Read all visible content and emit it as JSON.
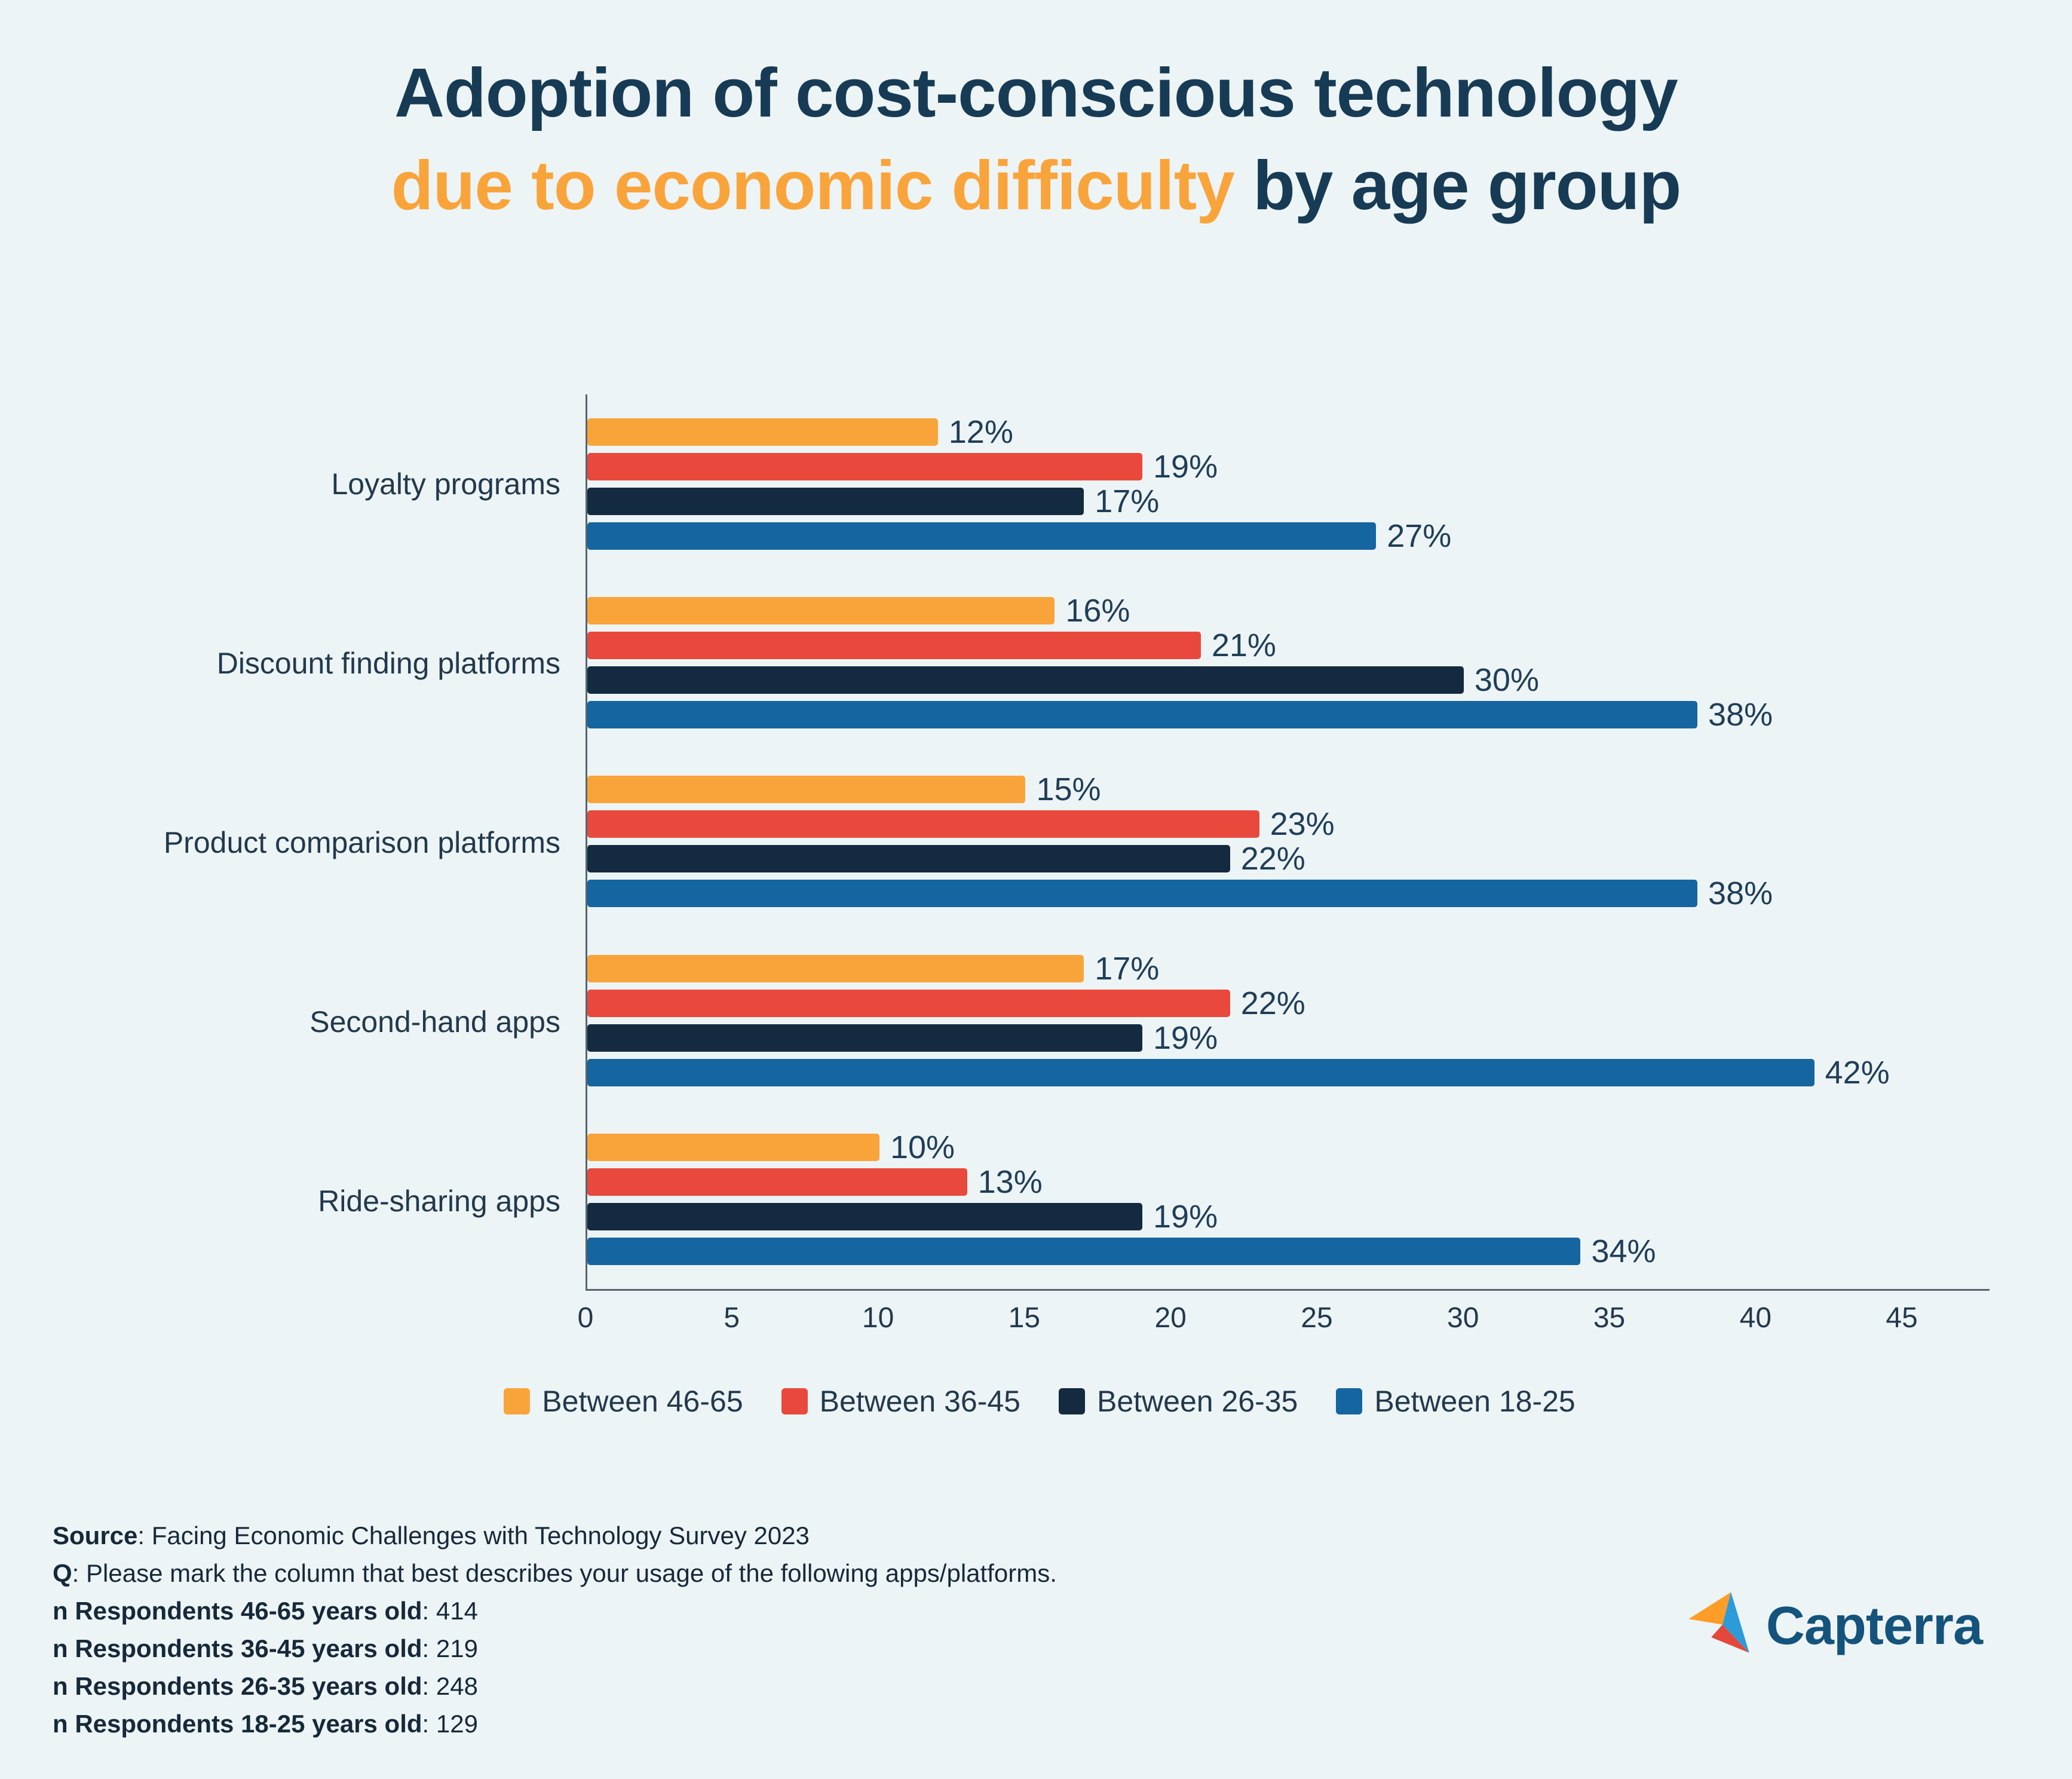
{
  "title": {
    "line1": "Adoption of cost-conscious technology",
    "line2_accent": "due to economic difficulty",
    "line2_rest": " by age group"
  },
  "colors": {
    "background": "#EDF4F6",
    "title_navy": "#173B54",
    "accent_orange": "#F9A43B",
    "axis": "#56656F",
    "text": "#1F3545"
  },
  "chart_data": {
    "type": "bar",
    "orientation": "horizontal",
    "title": "Adoption of cost-conscious technology due to economic difficulty by age group",
    "categories": [
      "Loyalty programs",
      "Discount finding platforms",
      "Product comparison platforms",
      "Second-hand apps",
      "Ride-sharing apps"
    ],
    "series": [
      {
        "name": "Between 46-65",
        "color": "#F9A43B",
        "values": [
          12,
          16,
          15,
          17,
          10
        ]
      },
      {
        "name": "Between 36-45",
        "color": "#E8493C",
        "values": [
          19,
          21,
          23,
          22,
          13
        ]
      },
      {
        "name": "Between 26-35",
        "color": "#132A40",
        "values": [
          17,
          30,
          22,
          19,
          19
        ]
      },
      {
        "name": "Between 18-25",
        "color": "#1565A0",
        "values": [
          27,
          38,
          38,
          42,
          34
        ]
      }
    ],
    "value_suffix": "%",
    "xlabel": "",
    "ylabel": "",
    "xlim": [
      0,
      48
    ],
    "xticks": [
      0,
      5,
      10,
      15,
      20,
      25,
      30,
      35,
      40,
      45
    ],
    "legend_position": "bottom",
    "grid": false
  },
  "footer": {
    "source_label": "Source",
    "source_rest": ": Facing Economic Challenges with Technology Survey 2023",
    "q_label": "Q",
    "q_rest": ": Please mark the column that best describes your usage of the following apps/platforms.",
    "n_lines": [
      {
        "bold": "n Respondents 46-65 years old",
        "rest": ": 414"
      },
      {
        "bold": "n Respondents 36-45 years old",
        "rest": ": 219"
      },
      {
        "bold": "n Respondents 26-35 years old",
        "rest": ": 248"
      },
      {
        "bold": "n Respondents 18-25 years old",
        "rest": ": 129"
      }
    ]
  },
  "logo": {
    "text": "Capterra"
  }
}
